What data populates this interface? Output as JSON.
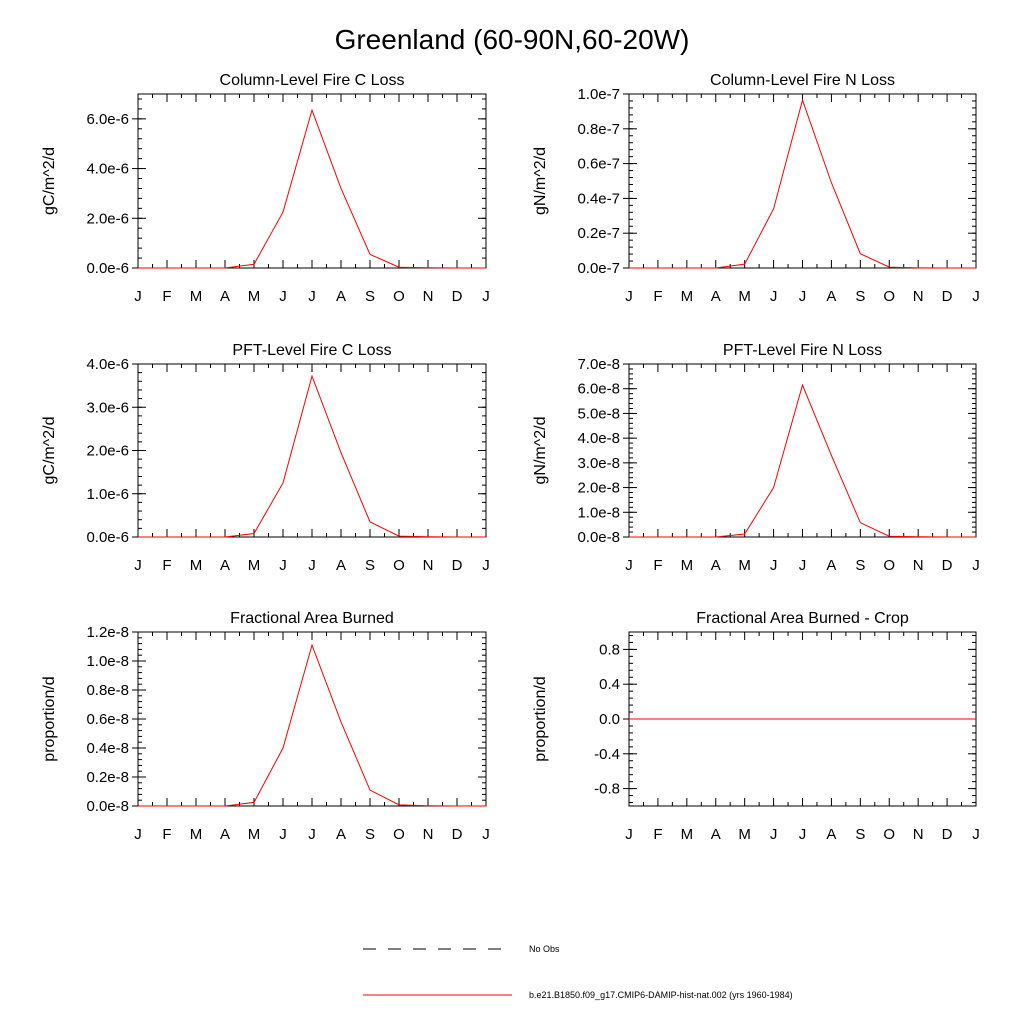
{
  "figure": {
    "title": "Greenland (60-90N,60-20W)"
  },
  "chart_data": [
    {
      "type": "line",
      "title": "Column-Level Fire C Loss",
      "ylabel": "gC/m^2/d",
      "x": [
        "J",
        "F",
        "M",
        "A",
        "M",
        "J",
        "J",
        "A",
        "S",
        "O",
        "N",
        "D",
        "J"
      ],
      "ylim": [
        0,
        7e-06
      ],
      "yticks": [
        0,
        2e-06,
        4e-06,
        6e-06
      ],
      "ytick_labels": [
        "0.0e-6",
        "2.0e-6",
        "4.0e-6",
        "6.0e-6"
      ],
      "series": [
        {
          "color": "#ff0000",
          "values": [
            0,
            0,
            0,
            0,
            1.5e-07,
            2.25e-06,
            6.35e-06,
            3.2e-06,
            5.5e-07,
            3e-08,
            1e-08,
            0,
            0
          ]
        }
      ]
    },
    {
      "type": "line",
      "title": "Column-Level Fire N Loss",
      "ylabel": "gN/m^2/d",
      "x": [
        "J",
        "F",
        "M",
        "A",
        "M",
        "J",
        "J",
        "A",
        "S",
        "O",
        "N",
        "D",
        "J"
      ],
      "ylim": [
        0,
        1e-07
      ],
      "yticks": [
        0,
        2e-08,
        4e-08,
        6e-08,
        8e-08,
        1e-07
      ],
      "ytick_labels": [
        "0.0e-7",
        "0.2e-7",
        "0.4e-7",
        "0.6e-7",
        "0.8e-7",
        "1.0e-7"
      ],
      "series": [
        {
          "color": "#ff0000",
          "values": [
            0,
            0,
            0,
            0,
            2.2e-09,
            3.4e-08,
            9.65e-08,
            4.9e-08,
            8.2e-09,
            5e-10,
            1e-10,
            0,
            0
          ]
        }
      ]
    },
    {
      "type": "line",
      "title": "PFT-Level Fire C Loss",
      "ylabel": "gC/m^2/d",
      "x": [
        "J",
        "F",
        "M",
        "A",
        "M",
        "J",
        "J",
        "A",
        "S",
        "O",
        "N",
        "D",
        "J"
      ],
      "ylim": [
        0,
        4e-06
      ],
      "yticks": [
        0,
        1e-06,
        2e-06,
        3e-06,
        4e-06
      ],
      "ytick_labels": [
        "0.0e-6",
        "1.0e-6",
        "2.0e-6",
        "3.0e-6",
        "4.0e-6"
      ],
      "series": [
        {
          "color": "#ff0000",
          "values": [
            0,
            0,
            0,
            0,
            8e-08,
            1.25e-06,
            3.72e-06,
            1.95e-06,
            3.5e-07,
            2e-08,
            5e-09,
            0,
            0
          ]
        }
      ]
    },
    {
      "type": "line",
      "title": "PFT-Level Fire N Loss",
      "ylabel": "gN/m^2/d",
      "x": [
        "J",
        "F",
        "M",
        "A",
        "M",
        "J",
        "J",
        "A",
        "S",
        "O",
        "N",
        "D",
        "J"
      ],
      "ylim": [
        0,
        7e-08
      ],
      "yticks": [
        0,
        1e-08,
        2e-08,
        3e-08,
        4e-08,
        5e-08,
        6e-08,
        7e-08
      ],
      "ytick_labels": [
        "0.0e-8",
        "1.0e-8",
        "2.0e-8",
        "3.0e-8",
        "4.0e-8",
        "5.0e-8",
        "6.0e-8",
        "7.0e-8"
      ],
      "series": [
        {
          "color": "#ff0000",
          "values": [
            0,
            0,
            0,
            0,
            1.2e-09,
            2e-08,
            6.15e-08,
            3.3e-08,
            5.8e-09,
            3e-10,
            1e-10,
            0,
            0
          ]
        }
      ]
    },
    {
      "type": "line",
      "title": "Fractional Area Burned",
      "ylabel": "proportion/d",
      "x": [
        "J",
        "F",
        "M",
        "A",
        "M",
        "J",
        "J",
        "A",
        "S",
        "O",
        "N",
        "D",
        "J"
      ],
      "ylim": [
        0,
        1.2e-08
      ],
      "yticks": [
        0,
        2e-09,
        4e-09,
        6e-09,
        8e-09,
        1e-08,
        1.2e-08
      ],
      "ytick_labels": [
        "0.0e-8",
        "0.2e-8",
        "0.4e-8",
        "0.6e-8",
        "0.8e-8",
        "1.0e-8",
        "1.2e-8"
      ],
      "series": [
        {
          "color": "#ff0000",
          "values": [
            0,
            0,
            0,
            0,
            2.5e-10,
            4e-09,
            1.11e-08,
            5.8e-09,
            1.1e-09,
            8e-11,
            2e-11,
            0,
            0
          ]
        }
      ]
    },
    {
      "type": "line",
      "title": "Fractional Area Burned - Crop",
      "ylabel": "proportion/d",
      "x": [
        "J",
        "F",
        "M",
        "A",
        "M",
        "J",
        "J",
        "A",
        "S",
        "O",
        "N",
        "D",
        "J"
      ],
      "ylim": [
        -1.0,
        1.0
      ],
      "yticks": [
        -0.8,
        -0.4,
        0.0,
        0.4,
        0.8
      ],
      "ytick_labels": [
        "-0.8",
        "-0.4",
        "0.0",
        "0.4",
        "0.8"
      ],
      "series": [
        {
          "color": "#ff0000",
          "values": [
            0,
            0,
            0,
            0,
            0,
            0,
            0,
            0,
            0,
            0,
            0,
            0,
            0
          ]
        }
      ]
    }
  ],
  "legend": {
    "placement": "bottom-center",
    "items": [
      {
        "label": "No Obs",
        "style": "dashed",
        "color": "#000000"
      },
      {
        "label": "b.e21.B1850.f09_g17.CMIP6-DAMIP-hist-nat.002 (yrs 1960-1984)",
        "style": "solid",
        "color": "#ff0000"
      }
    ]
  }
}
